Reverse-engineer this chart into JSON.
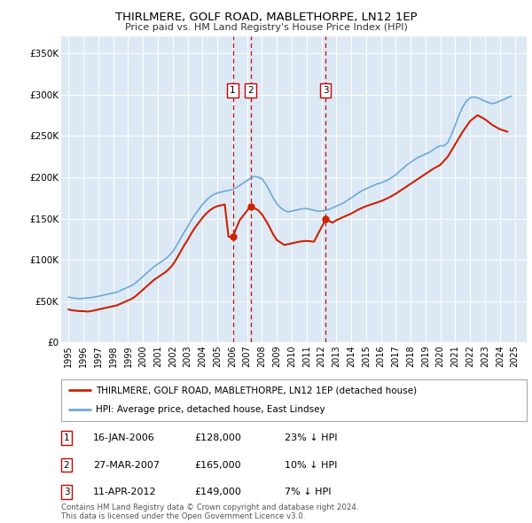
{
  "title": "THIRLMERE, GOLF ROAD, MABLETHORPE, LN12 1EP",
  "subtitle": "Price paid vs. HM Land Registry's House Price Index (HPI)",
  "background_color": "#dce9f5",
  "plot_bg_color": "#dce9f5",
  "hpi_color": "#6ea8d8",
  "price_color": "#cc2200",
  "vline_color": "#cc0000",
  "sales": [
    {
      "date_num": 2006.04,
      "price": 128000,
      "label": "1"
    },
    {
      "date_num": 2007.24,
      "price": 165000,
      "label": "2"
    },
    {
      "date_num": 2012.28,
      "price": 149000,
      "label": "3"
    }
  ],
  "sale_dates": [
    2006.04,
    2007.24,
    2012.28
  ],
  "sale_prices": [
    128000,
    165000,
    149000
  ],
  "sale_labels": [
    "1",
    "2",
    "3"
  ],
  "ylim": [
    0,
    370000
  ],
  "yticks": [
    0,
    50000,
    100000,
    150000,
    200000,
    250000,
    300000,
    350000
  ],
  "ytick_labels": [
    "£0",
    "£50K",
    "£100K",
    "£150K",
    "£200K",
    "£250K",
    "£300K",
    "£350K"
  ],
  "xlim_start": 1994.5,
  "xlim_end": 2025.8,
  "legend_line1": "THIRLMERE, GOLF ROAD, MABLETHORPE, LN12 1EP (detached house)",
  "legend_line2": "HPI: Average price, detached house, East Lindsey",
  "table_rows": [
    {
      "num": "1",
      "date": "16-JAN-2006",
      "price": "£128,000",
      "pct": "23% ↓ HPI"
    },
    {
      "num": "2",
      "date": "27-MAR-2007",
      "price": "£165,000",
      "pct": "10% ↓ HPI"
    },
    {
      "num": "3",
      "date": "11-APR-2012",
      "price": "£149,000",
      "pct": "7% ↓ HPI"
    }
  ],
  "footnote": "Contains HM Land Registry data © Crown copyright and database right 2024.\nThis data is licensed under the Open Government Licence v3.0.",
  "hpi_x": [
    1995.0,
    1995.25,
    1995.5,
    1995.75,
    1996.0,
    1996.25,
    1996.5,
    1996.75,
    1997.0,
    1997.25,
    1997.5,
    1997.75,
    1998.0,
    1998.25,
    1998.5,
    1998.75,
    1999.0,
    1999.25,
    1999.5,
    1999.75,
    2000.0,
    2000.25,
    2000.5,
    2000.75,
    2001.0,
    2001.25,
    2001.5,
    2001.75,
    2002.0,
    2002.25,
    2002.5,
    2002.75,
    2003.0,
    2003.25,
    2003.5,
    2003.75,
    2004.0,
    2004.25,
    2004.5,
    2004.75,
    2005.0,
    2005.25,
    2005.5,
    2005.75,
    2006.0,
    2006.25,
    2006.5,
    2006.75,
    2007.0,
    2007.25,
    2007.5,
    2007.75,
    2008.0,
    2008.25,
    2008.5,
    2008.75,
    2009.0,
    2009.25,
    2009.5,
    2009.75,
    2010.0,
    2010.25,
    2010.5,
    2010.75,
    2011.0,
    2011.25,
    2011.5,
    2011.75,
    2012.0,
    2012.25,
    2012.5,
    2012.75,
    2013.0,
    2013.25,
    2013.5,
    2013.75,
    2014.0,
    2014.25,
    2014.5,
    2014.75,
    2015.0,
    2015.25,
    2015.5,
    2015.75,
    2016.0,
    2016.25,
    2016.5,
    2016.75,
    2017.0,
    2017.25,
    2017.5,
    2017.75,
    2018.0,
    2018.25,
    2018.5,
    2018.75,
    2019.0,
    2019.25,
    2019.5,
    2019.75,
    2020.0,
    2020.25,
    2020.5,
    2020.75,
    2021.0,
    2021.25,
    2021.5,
    2021.75,
    2022.0,
    2022.25,
    2022.5,
    2022.75,
    2023.0,
    2023.25,
    2023.5,
    2023.75,
    2024.0,
    2024.25,
    2024.5,
    2024.75
  ],
  "hpi_y": [
    55000,
    54000,
    53500,
    53000,
    53500,
    54000,
    54500,
    55000,
    56000,
    57000,
    58000,
    59000,
    60000,
    61000,
    63000,
    65000,
    67000,
    69000,
    72000,
    76000,
    80000,
    84000,
    88000,
    92000,
    95000,
    98000,
    101000,
    105000,
    110000,
    117000,
    125000,
    133000,
    140000,
    148000,
    155000,
    161000,
    167000,
    172000,
    176000,
    179000,
    181000,
    182000,
    183000,
    184000,
    185000,
    187000,
    190000,
    193000,
    196000,
    199000,
    201000,
    200000,
    198000,
    192000,
    184000,
    175000,
    168000,
    163000,
    160000,
    158000,
    159000,
    160000,
    161000,
    162000,
    162000,
    161000,
    160000,
    159000,
    159000,
    160000,
    161000,
    163000,
    165000,
    167000,
    169000,
    172000,
    175000,
    178000,
    181000,
    184000,
    186000,
    188000,
    190000,
    192000,
    193000,
    195000,
    197000,
    200000,
    203000,
    207000,
    211000,
    215000,
    218000,
    221000,
    224000,
    226000,
    228000,
    230000,
    233000,
    236000,
    238000,
    238000,
    242000,
    252000,
    263000,
    275000,
    285000,
    292000,
    296000,
    297000,
    296000,
    294000,
    292000,
    290000,
    289000,
    290000,
    292000,
    294000,
    296000,
    298000
  ],
  "price_x": [
    1995.0,
    1995.25,
    1995.5,
    1995.75,
    1996.0,
    1996.25,
    1996.5,
    1996.75,
    1997.0,
    1997.25,
    1997.5,
    1997.75,
    1998.0,
    1998.25,
    1998.5,
    1998.75,
    1999.0,
    1999.25,
    1999.5,
    1999.75,
    2000.0,
    2000.25,
    2000.5,
    2000.75,
    2001.0,
    2001.25,
    2001.5,
    2001.75,
    2002.0,
    2002.25,
    2002.5,
    2002.75,
    2003.0,
    2003.25,
    2003.5,
    2003.75,
    2004.0,
    2004.25,
    2004.5,
    2004.75,
    2005.0,
    2005.25,
    2005.5,
    2005.75,
    2006.04,
    2006.5,
    2007.24,
    2007.75,
    2008.0,
    2008.25,
    2008.5,
    2008.75,
    2009.0,
    2009.5,
    2010.0,
    2010.5,
    2011.0,
    2011.5,
    2012.28,
    2012.75,
    2013.0,
    2013.5,
    2014.0,
    2014.5,
    2015.0,
    2015.5,
    2016.0,
    2016.5,
    2017.0,
    2017.5,
    2018.0,
    2018.5,
    2019.0,
    2019.5,
    2020.0,
    2020.5,
    2021.0,
    2021.5,
    2022.0,
    2022.5,
    2023.0,
    2023.5,
    2024.0,
    2024.5
  ],
  "price_y": [
    40000,
    39000,
    38500,
    38000,
    38000,
    37500,
    38000,
    39000,
    40000,
    41000,
    42000,
    43000,
    44000,
    45000,
    47000,
    49000,
    51000,
    53000,
    56000,
    60000,
    64000,
    68000,
    72000,
    76000,
    79000,
    82000,
    85000,
    89000,
    94000,
    101000,
    109000,
    117000,
    124000,
    132000,
    139000,
    145000,
    151000,
    156000,
    160000,
    163000,
    165000,
    166000,
    167000,
    128000,
    128000,
    148000,
    165000,
    160000,
    155000,
    148000,
    140000,
    131000,
    124000,
    118000,
    120000,
    122000,
    123000,
    122000,
    149000,
    145000,
    148000,
    152000,
    156000,
    161000,
    165000,
    168000,
    171000,
    175000,
    180000,
    186000,
    192000,
    198000,
    204000,
    210000,
    215000,
    225000,
    240000,
    255000,
    268000,
    275000,
    270000,
    263000,
    258000,
    255000
  ]
}
